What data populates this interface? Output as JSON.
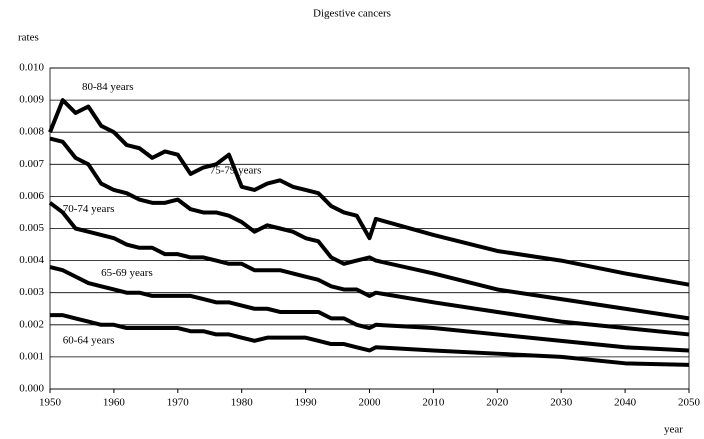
{
  "chart_data": {
    "type": "line",
    "title": "Digestive cancers",
    "y_label": "rates",
    "x_label": "year",
    "x": [
      1950,
      1952,
      1954,
      1956,
      1958,
      1960,
      1962,
      1964,
      1966,
      1968,
      1970,
      1972,
      1974,
      1976,
      1978,
      1980,
      1982,
      1984,
      1986,
      1988,
      1990,
      1992,
      1994,
      1996,
      1998,
      2000,
      2001,
      2010,
      2020,
      2030,
      2040,
      2050
    ],
    "series": [
      {
        "name": "80-84 years",
        "color": "#000000",
        "values": [
          0.008,
          0.009,
          0.0086,
          0.0088,
          0.0082,
          0.008,
          0.0076,
          0.0075,
          0.0072,
          0.0074,
          0.0073,
          0.0067,
          0.0069,
          0.007,
          0.0073,
          0.0063,
          0.0062,
          0.0064,
          0.0065,
          0.0063,
          0.0062,
          0.0061,
          0.0057,
          0.0055,
          0.0054,
          0.0047,
          0.0053,
          0.0048,
          0.0043,
          0.004,
          0.0036,
          0.00325
        ]
      },
      {
        "name": "75-79 years",
        "color": "#000000",
        "values": [
          0.0078,
          0.0077,
          0.0072,
          0.007,
          0.0064,
          0.0062,
          0.0061,
          0.0059,
          0.0058,
          0.0058,
          0.0059,
          0.0056,
          0.0055,
          0.0055,
          0.0054,
          0.0052,
          0.0049,
          0.0051,
          0.005,
          0.0049,
          0.0047,
          0.0046,
          0.0041,
          0.0039,
          0.004,
          0.0041,
          0.004,
          0.0036,
          0.0031,
          0.0028,
          0.0025,
          0.0022
        ]
      },
      {
        "name": "70-74 years",
        "color": "#000000",
        "values": [
          0.0058,
          0.0055,
          0.005,
          0.0049,
          0.0048,
          0.0047,
          0.0045,
          0.0044,
          0.0044,
          0.0042,
          0.0042,
          0.0041,
          0.0041,
          0.004,
          0.0039,
          0.0039,
          0.0037,
          0.0037,
          0.0037,
          0.0036,
          0.0035,
          0.0034,
          0.0032,
          0.0031,
          0.0031,
          0.0029,
          0.003,
          0.0027,
          0.0024,
          0.0021,
          0.0019,
          0.0017
        ]
      },
      {
        "name": "65-69 years",
        "color": "#000000",
        "values": [
          0.0038,
          0.0037,
          0.0035,
          0.0033,
          0.0032,
          0.0031,
          0.003,
          0.003,
          0.0029,
          0.0029,
          0.0029,
          0.0029,
          0.0028,
          0.0027,
          0.0027,
          0.0026,
          0.0025,
          0.0025,
          0.0024,
          0.0024,
          0.0024,
          0.0024,
          0.0022,
          0.0022,
          0.002,
          0.0019,
          0.002,
          0.0019,
          0.0017,
          0.0015,
          0.0013,
          0.0012
        ]
      },
      {
        "name": "60-64 years",
        "color": "#000000",
        "values": [
          0.0023,
          0.0023,
          0.0022,
          0.0021,
          0.002,
          0.002,
          0.0019,
          0.0019,
          0.0019,
          0.0019,
          0.0019,
          0.0018,
          0.0018,
          0.0017,
          0.0017,
          0.0016,
          0.0015,
          0.0016,
          0.0016,
          0.0016,
          0.0016,
          0.0015,
          0.0014,
          0.0014,
          0.0013,
          0.0012,
          0.0013,
          0.0012,
          0.0011,
          0.001,
          0.0008,
          0.00075
        ]
      }
    ],
    "xlim": [
      1950,
      2050
    ],
    "xticks": [
      1950,
      1960,
      1970,
      1980,
      1990,
      2000,
      2010,
      2020,
      2030,
      2040,
      2050
    ],
    "ylim": [
      0,
      0.01
    ],
    "yticks": [
      {
        "value": 0,
        "label": "0.000"
      },
      {
        "value": 0.001,
        "label": "0.001"
      },
      {
        "value": 0.002,
        "label": "0.002"
      },
      {
        "value": 0.003,
        "label": "0.003"
      },
      {
        "value": 0.004,
        "label": "0.004"
      },
      {
        "value": 0.005,
        "label": "0.005"
      },
      {
        "value": 0.006,
        "label": "0.006"
      },
      {
        "value": 0.007,
        "label": "0.007"
      },
      {
        "value": 0.008,
        "label": "0.008"
      },
      {
        "value": 0.009,
        "label": "0.009"
      },
      {
        "value": 0.01,
        "label": "0.010"
      }
    ],
    "grid": true
  }
}
